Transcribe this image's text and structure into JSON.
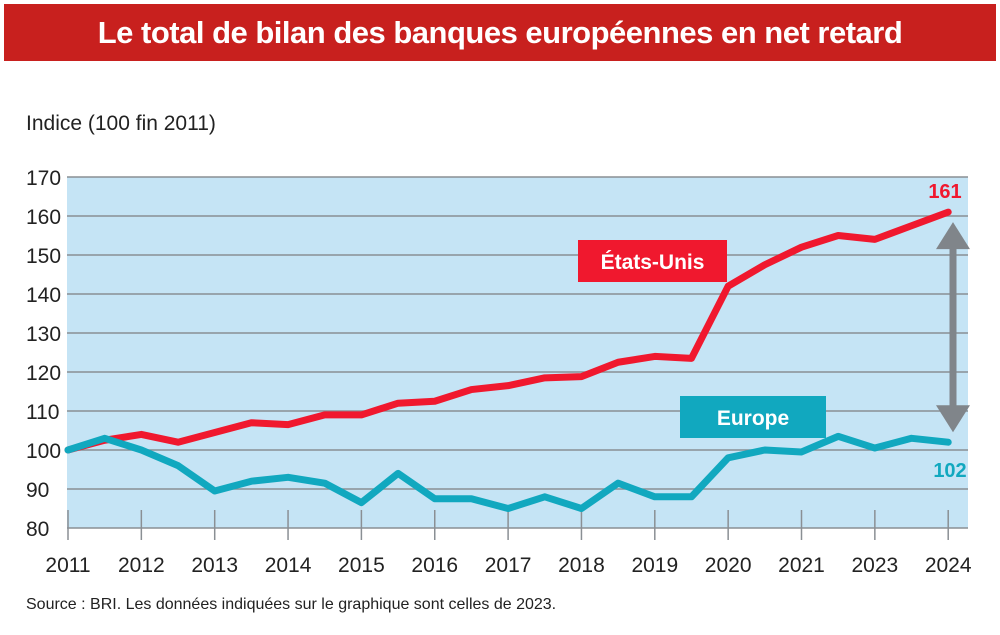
{
  "chart_data": {
    "type": "line",
    "title": "Le total de bilan des banques européennes en net retard",
    "ylabel": "Indice (100 fin 2011)",
    "source": "Source : BRI. Les données indiquées sur le graphique sont celles de 2023.",
    "ylim": [
      80,
      170
    ],
    "yticks": [
      80,
      90,
      100,
      110,
      120,
      130,
      140,
      150,
      160,
      170
    ],
    "xtick_labels": [
      "2011",
      "2012",
      "2013",
      "2014",
      "2015",
      "2016",
      "2017",
      "2018",
      "2019",
      "2020",
      "2021",
      "2023",
      "2024"
    ],
    "grid": true,
    "background_color": "#c5e4f5",
    "series": [
      {
        "name": "États-Unis",
        "color": "#f0182e",
        "end_label": "161",
        "x": [
          "2011",
          "2011.5",
          "2012",
          "2012.5",
          "2013",
          "2013.5",
          "2014",
          "2014.5",
          "2015",
          "2015.5",
          "2016",
          "2016.5",
          "2017",
          "2017.5",
          "2018",
          "2018.5",
          "2019",
          "2019.5",
          "2020",
          "2020.5",
          "2021",
          "2021.5",
          "2023",
          "2023.5",
          "2024"
        ],
        "values": [
          100,
          102.5,
          104,
          102,
          104.5,
          107,
          106.5,
          109,
          109,
          112,
          112.5,
          115.5,
          116.5,
          118.5,
          118.8,
          122.5,
          124,
          123.5,
          142,
          147.5,
          152,
          155,
          154,
          157.5,
          161
        ]
      },
      {
        "name": "Europe",
        "color": "#11a8bf",
        "end_label": "102",
        "x": [
          "2011",
          "2011.5",
          "2012",
          "2012.5",
          "2013",
          "2013.5",
          "2014",
          "2014.5",
          "2015",
          "2015.5",
          "2016",
          "2016.5",
          "2017",
          "2017.5",
          "2018",
          "2018.5",
          "2019",
          "2019.5",
          "2020",
          "2020.5",
          "2021",
          "2021.5",
          "2023",
          "2023.5",
          "2024"
        ],
        "values": [
          100,
          103,
          100,
          96,
          89.5,
          92,
          93,
          91.5,
          86.5,
          94,
          87.5,
          87.5,
          85,
          88,
          85,
          91.5,
          88,
          88,
          98,
          100,
          99.5,
          103.5,
          100.5,
          103,
          102
        ]
      }
    ],
    "annotation": "double-arrow between États-Unis and Europe at 2024"
  }
}
